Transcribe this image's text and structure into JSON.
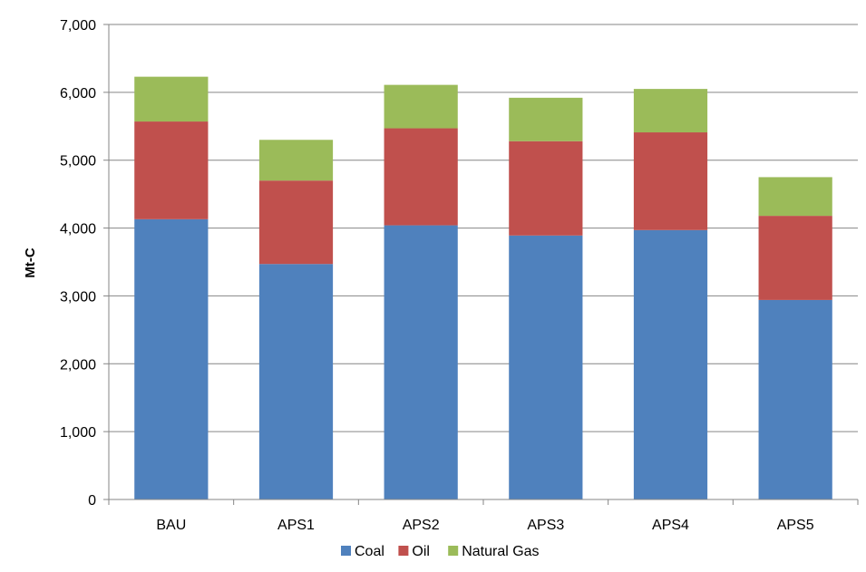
{
  "chart_data": {
    "type": "bar",
    "stacked": true,
    "categories": [
      "BAU",
      "APS1",
      "APS2",
      "APS3",
      "APS4",
      "APS5"
    ],
    "series": [
      {
        "name": "Coal",
        "color": "#4F81BD",
        "values": [
          4130,
          3470,
          4040,
          3890,
          3970,
          2940
        ]
      },
      {
        "name": "Oil",
        "color": "#C0504D",
        "values": [
          1440,
          1230,
          1430,
          1390,
          1440,
          1240
        ]
      },
      {
        "name": "Natural Gas",
        "color": "#9BBB59",
        "values": [
          660,
          600,
          640,
          640,
          640,
          570
        ]
      }
    ],
    "ylabel": "Mt-C",
    "ylim": [
      0,
      7000
    ],
    "yticks": [
      0,
      1000,
      2000,
      3000,
      4000,
      5000,
      6000,
      7000
    ],
    "ytick_labels": [
      "0",
      "1,000",
      "2,000",
      "3,000",
      "4,000",
      "5,000",
      "6,000",
      "7,000"
    ],
    "grid": true,
    "legend_position": "bottom",
    "gridline_color": "#868686",
    "axis_color": "#868686"
  }
}
